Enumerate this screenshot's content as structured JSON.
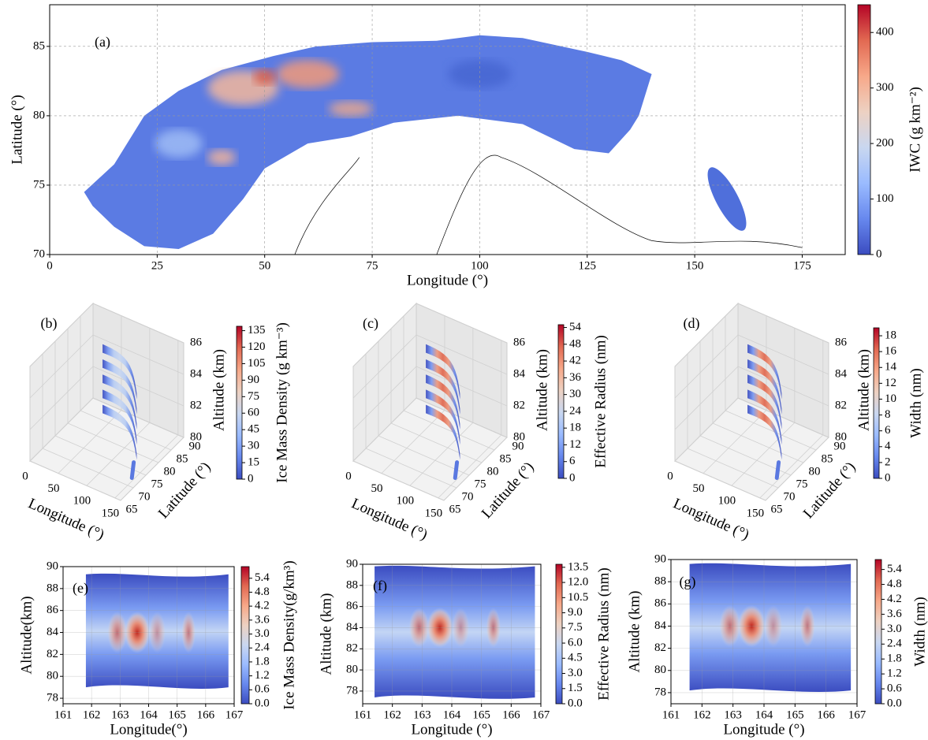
{
  "chart_data": [
    {
      "type": "map",
      "panel_label": "(a)",
      "xlabel": "Longitude (°)",
      "ylabel": "Latitude (°)",
      "xlim": [
        0,
        185
      ],
      "ylim": [
        70,
        88
      ],
      "xticks": [
        0,
        25,
        50,
        75,
        100,
        125,
        150,
        175
      ],
      "yticks": [
        70,
        75,
        80,
        85
      ],
      "grid": true,
      "colormap": "coolwarm",
      "colorbar": {
        "label": "IWC (g km⁻²)",
        "lim": [
          0,
          450
        ],
        "ticks": [
          0,
          100,
          200,
          300,
          400
        ]
      }
    },
    {
      "type": "3d",
      "panel_label": "(b)",
      "xlabel": "Longitude (°)",
      "ylabel": "Latitude (°)",
      "zlabel": "Altitude (km)",
      "xlim": [
        0,
        160
      ],
      "ylim": [
        65,
        90
      ],
      "zlim": [
        80,
        86
      ],
      "xticks": [
        0,
        50,
        100,
        150
      ],
      "yticks": [
        65,
        70,
        75,
        80,
        85,
        90
      ],
      "zticks": [
        80,
        82,
        84,
        86
      ],
      "grid": true,
      "colormap": "coolwarm",
      "colorbar": {
        "label": "Ice Mass Density (g km⁻³)",
        "lim": [
          0,
          139
        ],
        "ticks": [
          0,
          15,
          30,
          45,
          60,
          75,
          90,
          105,
          120,
          135
        ]
      }
    },
    {
      "type": "3d",
      "panel_label": "(c)",
      "xlabel": "Longitude (°)",
      "ylabel": "Latitude (°)",
      "zlabel": "Altitude (km)",
      "xlim": [
        0,
        160
      ],
      "ylim": [
        65,
        90
      ],
      "zlim": [
        80,
        86
      ],
      "xticks": [
        0,
        50,
        100,
        150
      ],
      "yticks": [
        65,
        70,
        75,
        80,
        85,
        90
      ],
      "zticks": [
        80,
        82,
        84,
        86
      ],
      "grid": true,
      "colormap": "coolwarm",
      "colorbar": {
        "label": "Effective Radius (nm)",
        "lim": [
          0,
          55
        ],
        "ticks": [
          0,
          6,
          12,
          18,
          24,
          30,
          36,
          42,
          48,
          54
        ]
      }
    },
    {
      "type": "3d",
      "panel_label": "(d)",
      "xlabel": "Longitude (°)",
      "ylabel": "Latitude (°)",
      "zlabel": "Altitude (km)",
      "xlim": [
        0,
        160
      ],
      "ylim": [
        65,
        90
      ],
      "zlim": [
        80,
        86
      ],
      "xticks": [
        0,
        50,
        100,
        150
      ],
      "yticks": [
        65,
        70,
        75,
        80,
        85,
        90
      ],
      "zticks": [
        80,
        82,
        84,
        86
      ],
      "grid": true,
      "colormap": "coolwarm",
      "colorbar": {
        "label": "Width (nm)",
        "lim": [
          0,
          19
        ],
        "ticks": [
          0,
          2,
          4,
          6,
          8,
          10,
          12,
          14,
          16,
          18
        ]
      }
    },
    {
      "type": "contour",
      "panel_label": "(e)",
      "xlabel": "Longitude(°)",
      "ylabel": "Altitude(km)",
      "xlim": [
        161,
        167
      ],
      "ylim": [
        77.5,
        90
      ],
      "xticks": [
        161,
        162,
        163,
        164,
        165,
        166,
        167
      ],
      "yticks": [
        78,
        80,
        82,
        84,
        86,
        88,
        90
      ],
      "grid": true,
      "colormap": "coolwarm",
      "colorbar": {
        "label": "Ice Mass Density(g/km³)",
        "lim": [
          0,
          5.9
        ],
        "ticks": [
          {
            "value": 0,
            "label": "0.0"
          },
          0.6,
          1.2,
          1.8,
          2.4,
          {
            "value": 3,
            "label": "3.0"
          },
          3.6,
          4.2,
          4.8,
          5.4
        ]
      }
    },
    {
      "type": "contour",
      "panel_label": "(f)",
      "xlabel": "Longitude (°)",
      "ylabel": "Altitude (km)",
      "xlim": [
        161,
        167
      ],
      "ylim": [
        76.8,
        90
      ],
      "xticks": [
        161,
        162,
        163,
        164,
        165,
        166,
        167
      ],
      "yticks": [
        78,
        80,
        82,
        84,
        86,
        88,
        90
      ],
      "grid": true,
      "colormap": "coolwarm",
      "colorbar": {
        "label": "Effective Radius (nm)",
        "lim": [
          0,
          13.8
        ],
        "ticks": [
          {
            "value": 0,
            "label": "0.0"
          },
          1.5,
          {
            "value": 3,
            "label": "3.0"
          },
          4.5,
          {
            "value": 6,
            "label": "6.0"
          },
          7.5,
          {
            "value": 9,
            "label": "9.0"
          },
          10.5,
          {
            "value": 12,
            "label": "12.0"
          },
          13.5
        ]
      }
    },
    {
      "type": "contour",
      "panel_label": "(g)",
      "xlabel": "Longitude (°)",
      "ylabel": "Altitude (km)",
      "xlim": [
        161,
        167
      ],
      "ylim": [
        77,
        90
      ],
      "xticks": [
        161,
        162,
        163,
        164,
        165,
        166,
        167
      ],
      "yticks": [
        78,
        80,
        82,
        84,
        86,
        88,
        90
      ],
      "grid": true,
      "colormap": "coolwarm",
      "colorbar": {
        "label": "Width (nm)",
        "lim": [
          0,
          5.8
        ],
        "ticks": [
          {
            "value": 0,
            "label": "0.0"
          },
          0.6,
          1.2,
          1.8,
          2.4,
          {
            "value": 3,
            "label": "3.0"
          },
          3.6,
          4.2,
          4.8,
          5.4
        ]
      }
    }
  ]
}
